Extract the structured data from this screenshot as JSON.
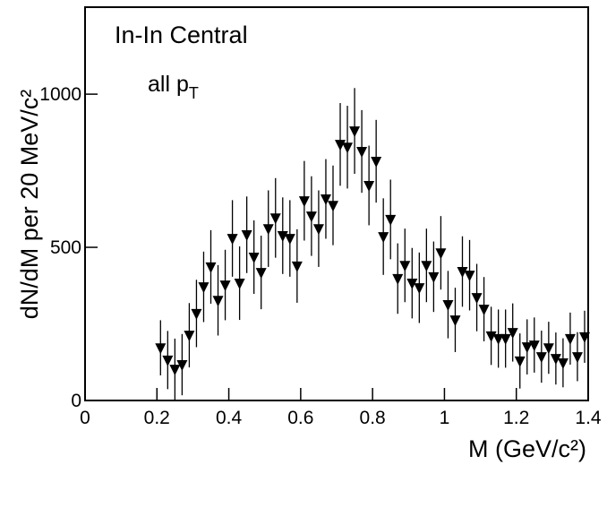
{
  "chart_data": {
    "type": "scatter",
    "xlabel": "M (GeV/c²)",
    "ylabel": "dN/dM per 20 MeV/c²",
    "annotations": [
      {
        "text": "In-In Central"
      },
      {
        "text": "all p",
        "subscript": "T"
      }
    ],
    "color": "#000000",
    "xlim": [
      0,
      1.4
    ],
    "xticks": [
      0,
      0.2,
      0.4,
      0.6,
      0.8,
      1,
      1.2,
      1.4
    ],
    "ylim": [
      0,
      1284
    ],
    "yticks": [
      0,
      500,
      1000
    ],
    "x": [
      0.21,
      0.23,
      0.25,
      0.27,
      0.29,
      0.31,
      0.33,
      0.35,
      0.37,
      0.39,
      0.41,
      0.43,
      0.45,
      0.47,
      0.49,
      0.51,
      0.53,
      0.55,
      0.57,
      0.59,
      0.61,
      0.63,
      0.65,
      0.67,
      0.69,
      0.71,
      0.73,
      0.75,
      0.77,
      0.79,
      0.81,
      0.83,
      0.85,
      0.87,
      0.89,
      0.91,
      0.93,
      0.95,
      0.97,
      0.99,
      1.01,
      1.03,
      1.05,
      1.07,
      1.09,
      1.11,
      1.13,
      1.15,
      1.17,
      1.19,
      1.21,
      1.23,
      1.25,
      1.27,
      1.29,
      1.31,
      1.33,
      1.35,
      1.37,
      1.39
    ],
    "values": [
      172,
      132,
      102,
      117,
      213,
      284,
      371,
      436,
      327,
      377,
      529,
      383,
      541,
      468,
      418,
      561,
      596,
      538,
      529,
      439,
      652,
      602,
      561,
      658,
      637,
      836,
      827,
      880,
      813,
      702,
      781,
      535,
      591,
      398,
      441,
      383,
      368,
      441,
      404,
      482,
      313,
      263,
      421,
      409,
      336,
      298,
      211,
      202,
      202,
      222,
      129,
      175,
      181,
      143,
      172,
      137,
      123,
      202,
      143,
      208
    ],
    "errors": [
      90,
      95,
      100,
      100,
      105,
      110,
      115,
      120,
      115,
      115,
      125,
      120,
      125,
      120,
      120,
      125,
      130,
      125,
      125,
      120,
      130,
      130,
      125,
      130,
      130,
      135,
      135,
      140,
      135,
      130,
      135,
      125,
      130,
      115,
      120,
      115,
      115,
      120,
      115,
      120,
      110,
      105,
      115,
      115,
      110,
      105,
      95,
      95,
      95,
      95,
      90,
      90,
      90,
      85,
      85,
      85,
      80,
      85,
      80,
      85
    ]
  }
}
